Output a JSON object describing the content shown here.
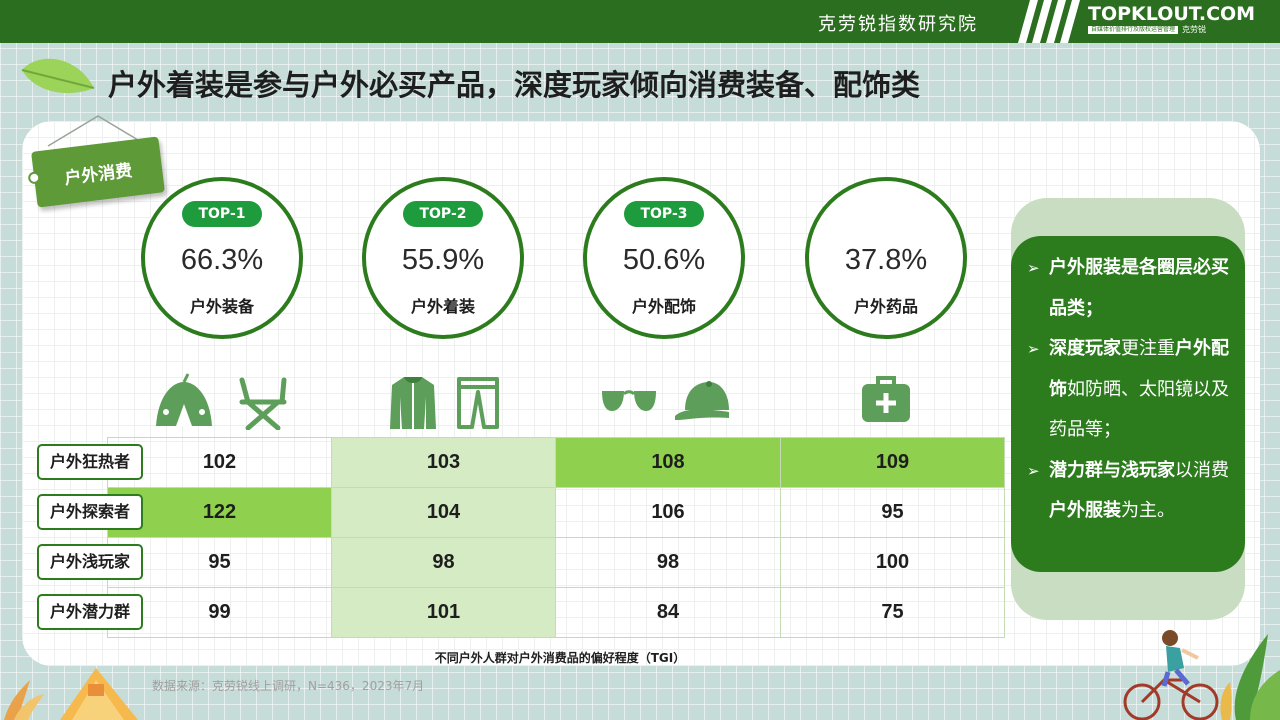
{
  "header": {
    "institute": "克劳锐指数研究院",
    "logo": "TOPKLOUT.COM",
    "logo_sub": "自媒体价值排行及版权运营管理",
    "logo_brand": "克劳锐"
  },
  "page_title": "户外着装是参与户外必买产品，深度玩家倾向消费装备、配饰类",
  "section_tag": "户外消费",
  "top_items": [
    {
      "badge": "TOP-1",
      "percent": "66.3%",
      "label": "户外装备"
    },
    {
      "badge": "TOP-2",
      "percent": "55.9%",
      "label": "户外着装"
    },
    {
      "badge": "TOP-3",
      "percent": "50.6%",
      "label": "户外配饰"
    },
    {
      "badge": "",
      "percent": "37.8%",
      "label": "户外药品"
    }
  ],
  "icons": [
    "tent-icon",
    "folding-chair-icon",
    "jacket-icon",
    "pants-icon",
    "sunglasses-icon",
    "cap-icon",
    "first-aid-kit-icon"
  ],
  "table": {
    "row_labels": [
      "户外狂热者",
      "户外探索者",
      "户外浅玩家",
      "户外潜力群"
    ],
    "rows": [
      [
        "102",
        "103",
        "108",
        "109"
      ],
      [
        "122",
        "104",
        "106",
        "95"
      ],
      [
        "95",
        "98",
        "98",
        "100"
      ],
      [
        "99",
        "101",
        "84",
        "75"
      ]
    ],
    "caption": "不同户外人群对户外消费品的偏好程度（TGI）"
  },
  "source": "数据来源：克劳锐线上调研，N=436，2023年7月",
  "insights": {
    "p1_bold": "户外服装是各圈层必买品类；",
    "p2_bold_a": "深度玩家",
    "p2_text_a": "更注重",
    "p2_bold_b": "户外配饰",
    "p2_text_b": "如防晒、太阳镜以及药品等；",
    "p3_bold_a": "潜力群与浅玩家",
    "p3_text_a": "以消费",
    "p3_bold_b": "户外服装",
    "p3_text_b": "为主。"
  },
  "colors": {
    "header_green": "#2c6e1f",
    "circle_green": "#2c7c1e",
    "badge_green": "#1e9b3c",
    "highlight_bright": "#8fd14f",
    "highlight_light": "#d4ebc4",
    "icon_green": "#5c9e5a"
  }
}
